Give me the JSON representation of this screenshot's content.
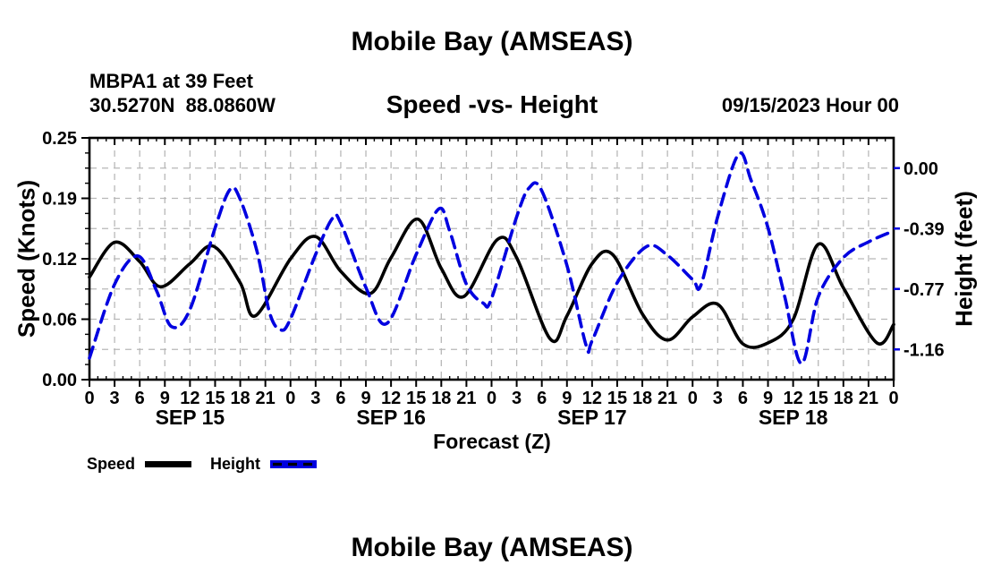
{
  "page": {
    "title_top": "Mobile Bay (AMSEAS)",
    "station_line1": "MBPA1 at 39 Feet",
    "station_line2": "30.5270N  88.0860W",
    "subtitle": "Speed -vs- Height",
    "datetime": "09/15/2023 Hour 00",
    "title_bottom": "Mobile Bay (AMSEAS)"
  },
  "legend": {
    "items": [
      {
        "label": "Speed",
        "color": "#000000",
        "style": "solid"
      },
      {
        "label": "Height",
        "color": "#0000e0",
        "style": "dashed"
      }
    ]
  },
  "chart_data": {
    "type": "line",
    "title": "Mobile Bay (AMSEAS)",
    "subtitle": "Speed -vs- Height",
    "x_axis": {
      "label": "Forecast (Z)",
      "min": 0,
      "max": 96,
      "major_tick_hours": 3,
      "minor_tick_hours": 1,
      "hour_label_modulo": 24,
      "day_labels": [
        {
          "text": "SEP 15",
          "center_hour": 12
        },
        {
          "text": "SEP 16",
          "center_hour": 36
        },
        {
          "text": "SEP 17",
          "center_hour": 60
        },
        {
          "text": "SEP 18",
          "center_hour": 84
        }
      ]
    },
    "y_axis_left": {
      "label": "Speed (Knots)",
      "min": 0,
      "max": 0.25,
      "tick_values": [
        0,
        0.0625,
        0.125,
        0.1875,
        0.25
      ],
      "tick_labels": [
        "0.00",
        "0.06",
        "0.12",
        "0.19",
        "0.25"
      ],
      "minor_tick_step": 0.015625,
      "grid_step": 0.03125
    },
    "y_axis_right": {
      "label": "Height (feet)",
      "min": -1.3475,
      "max": 0.1925,
      "tick_values": [
        0,
        -0.385,
        -0.77,
        -1.155
      ],
      "tick_labels": [
        "0.00",
        "-0.39",
        "-0.77",
        "-1.16"
      ],
      "tick_color": "#0000e0"
    },
    "grid": {
      "show": true,
      "color": "#b8b8b8"
    },
    "series": [
      {
        "name": "Speed",
        "axis": "left",
        "units": "knots",
        "color": "#000000",
        "line_style": "solid",
        "points": [
          [
            0,
            0.106
          ],
          [
            3,
            0.142
          ],
          [
            6,
            0.122
          ],
          [
            8.5,
            0.096
          ],
          [
            12,
            0.12
          ],
          [
            14.8,
            0.138
          ],
          [
            18,
            0.1
          ],
          [
            19.8,
            0.066
          ],
          [
            24,
            0.125
          ],
          [
            27,
            0.148
          ],
          [
            30,
            0.112
          ],
          [
            33.5,
            0.089
          ],
          [
            36,
            0.126
          ],
          [
            39.2,
            0.166
          ],
          [
            42,
            0.115
          ],
          [
            44.7,
            0.086
          ],
          [
            48.7,
            0.145
          ],
          [
            51,
            0.126
          ],
          [
            55,
            0.042
          ],
          [
            57,
            0.066
          ],
          [
            60,
            0.12
          ],
          [
            62.5,
            0.129
          ],
          [
            66,
            0.068
          ],
          [
            69,
            0.041
          ],
          [
            72,
            0.065
          ],
          [
            75,
            0.078
          ],
          [
            78,
            0.037
          ],
          [
            81,
            0.038
          ],
          [
            84,
            0.062
          ],
          [
            87,
            0.14
          ],
          [
            90,
            0.095
          ],
          [
            94,
            0.038
          ],
          [
            96,
            0.057
          ]
        ]
      },
      {
        "name": "Height",
        "axis": "right",
        "units": "feet",
        "color": "#0000e0",
        "line_style": "dashed",
        "points": [
          [
            0,
            -1.21
          ],
          [
            3,
            -0.74
          ],
          [
            5.8,
            -0.56
          ],
          [
            8,
            -0.78
          ],
          [
            9.8,
            -1.01
          ],
          [
            12,
            -0.9
          ],
          [
            15,
            -0.38
          ],
          [
            16.8,
            -0.135
          ],
          [
            18,
            -0.2
          ],
          [
            20,
            -0.53
          ],
          [
            21.5,
            -0.92
          ],
          [
            22.8,
            -1.03
          ],
          [
            24,
            -0.96
          ],
          [
            27,
            -0.55
          ],
          [
            29,
            -0.32
          ],
          [
            30,
            -0.35
          ],
          [
            33,
            -0.76
          ],
          [
            35.5,
            -0.99
          ],
          [
            39,
            -0.55
          ],
          [
            41.7,
            -0.26
          ],
          [
            43,
            -0.4
          ],
          [
            45,
            -0.74
          ],
          [
            47,
            -0.86
          ],
          [
            48,
            -0.83
          ],
          [
            51,
            -0.31
          ],
          [
            52.5,
            -0.125
          ],
          [
            54,
            -0.145
          ],
          [
            57,
            -0.62
          ],
          [
            59.3,
            -1.13
          ],
          [
            60,
            -1.1
          ],
          [
            63,
            -0.73
          ],
          [
            66.5,
            -0.5
          ],
          [
            69,
            -0.555
          ],
          [
            72,
            -0.71
          ],
          [
            73,
            -0.745
          ],
          [
            75,
            -0.31
          ],
          [
            77.5,
            0.09
          ],
          [
            79,
            -0.08
          ],
          [
            81,
            -0.38
          ],
          [
            83,
            -0.82
          ],
          [
            85,
            -1.245
          ],
          [
            87,
            -0.82
          ],
          [
            90,
            -0.57
          ],
          [
            93,
            -0.47
          ],
          [
            96,
            -0.4
          ]
        ]
      }
    ]
  }
}
